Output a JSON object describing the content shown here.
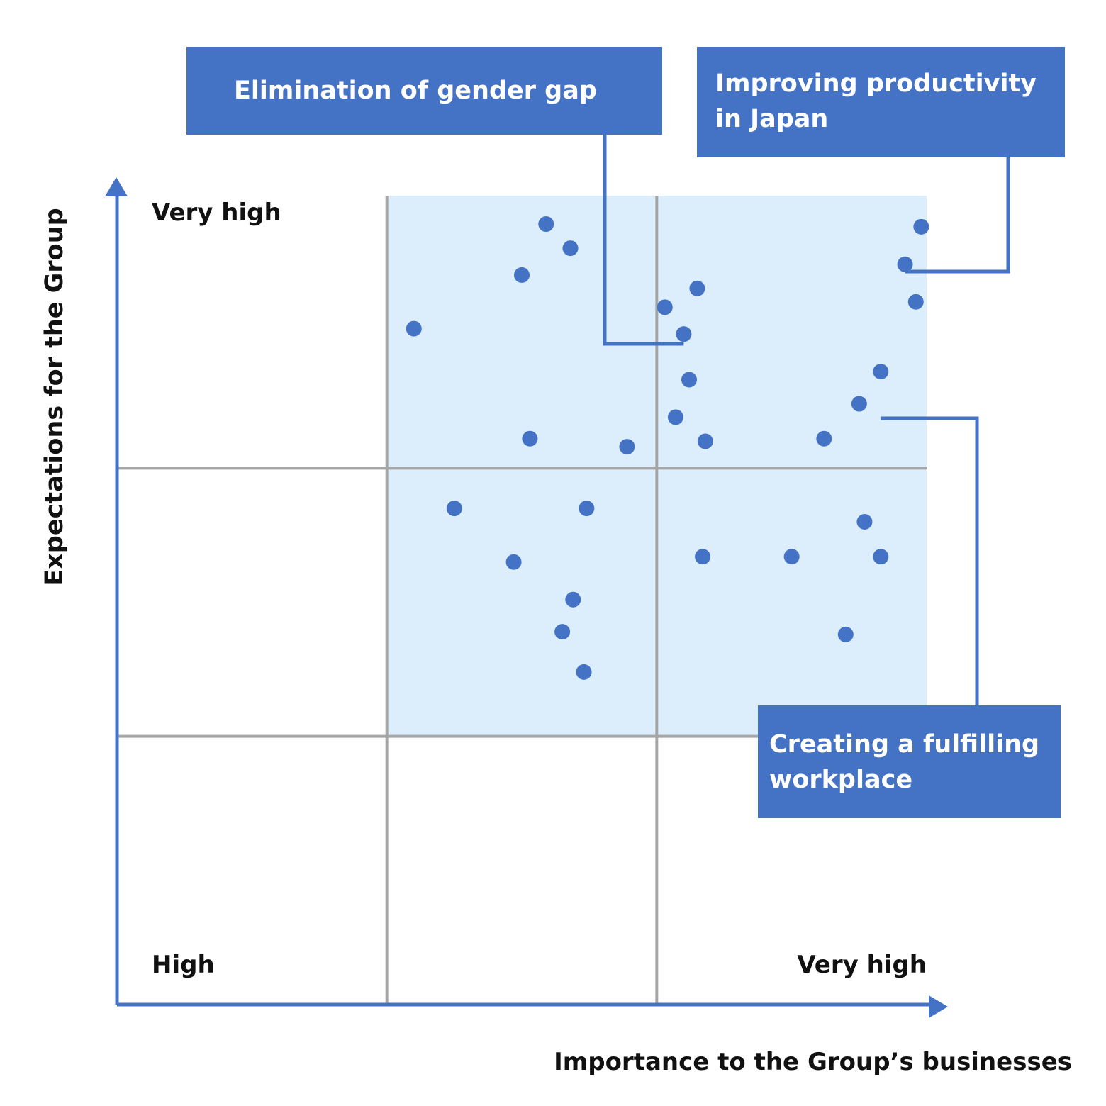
{
  "colors": {
    "accent": "#4472c4",
    "shade": "#dcedfb",
    "grid": "#a6a6a6",
    "text": "#111111",
    "callout_text": "#ffffff"
  },
  "chart_data": {
    "type": "scatter",
    "xlabel": "Importance to the Group’s businesses",
    "ylabel": "Expectations for the Group",
    "x_tick_labels": {
      "low": "High",
      "high": "Very high"
    },
    "y_tick_labels": {
      "high": "Very high"
    },
    "xlim": [
      0,
      3
    ],
    "ylim": [
      0,
      3
    ],
    "grid": true,
    "shaded_region": {
      "x": [
        1,
        3
      ],
      "y": [
        1,
        3
      ]
    },
    "points": [
      {
        "x": 1.1,
        "y": 2.52
      },
      {
        "x": 1.5,
        "y": 2.72
      },
      {
        "x": 1.59,
        "y": 2.91
      },
      {
        "x": 1.68,
        "y": 2.82
      },
      {
        "x": 1.53,
        "y": 2.11
      },
      {
        "x": 1.89,
        "y": 2.08
      },
      {
        "x": 2.03,
        "y": 2.6
      },
      {
        "x": 2.15,
        "y": 2.67
      },
      {
        "x": 2.1,
        "y": 2.5
      },
      {
        "x": 2.12,
        "y": 2.33
      },
      {
        "x": 2.07,
        "y": 2.19
      },
      {
        "x": 2.18,
        "y": 2.1
      },
      {
        "x": 2.62,
        "y": 2.11
      },
      {
        "x": 2.75,
        "y": 2.24
      },
      {
        "x": 2.83,
        "y": 2.36
      },
      {
        "x": 2.92,
        "y": 2.76
      },
      {
        "x": 2.96,
        "y": 2.62
      },
      {
        "x": 2.98,
        "y": 2.9
      },
      {
        "x": 1.25,
        "y": 1.85
      },
      {
        "x": 1.74,
        "y": 1.85
      },
      {
        "x": 1.47,
        "y": 1.65
      },
      {
        "x": 1.69,
        "y": 1.51
      },
      {
        "x": 1.65,
        "y": 1.39
      },
      {
        "x": 1.73,
        "y": 1.24
      },
      {
        "x": 2.17,
        "y": 1.67
      },
      {
        "x": 2.5,
        "y": 1.67
      },
      {
        "x": 2.77,
        "y": 1.8
      },
      {
        "x": 2.83,
        "y": 1.67
      },
      {
        "x": 2.7,
        "y": 1.38
      }
    ],
    "annotations": [
      {
        "lines": [
          "Elimination of gender gap"
        ],
        "point_index": 8
      },
      {
        "lines": [
          "Improving productivity",
          "in Japan"
        ],
        "point_index": 15
      },
      {
        "lines": [
          "Creating a fulfilling",
          "workplace"
        ],
        "point_index": 14
      }
    ]
  }
}
